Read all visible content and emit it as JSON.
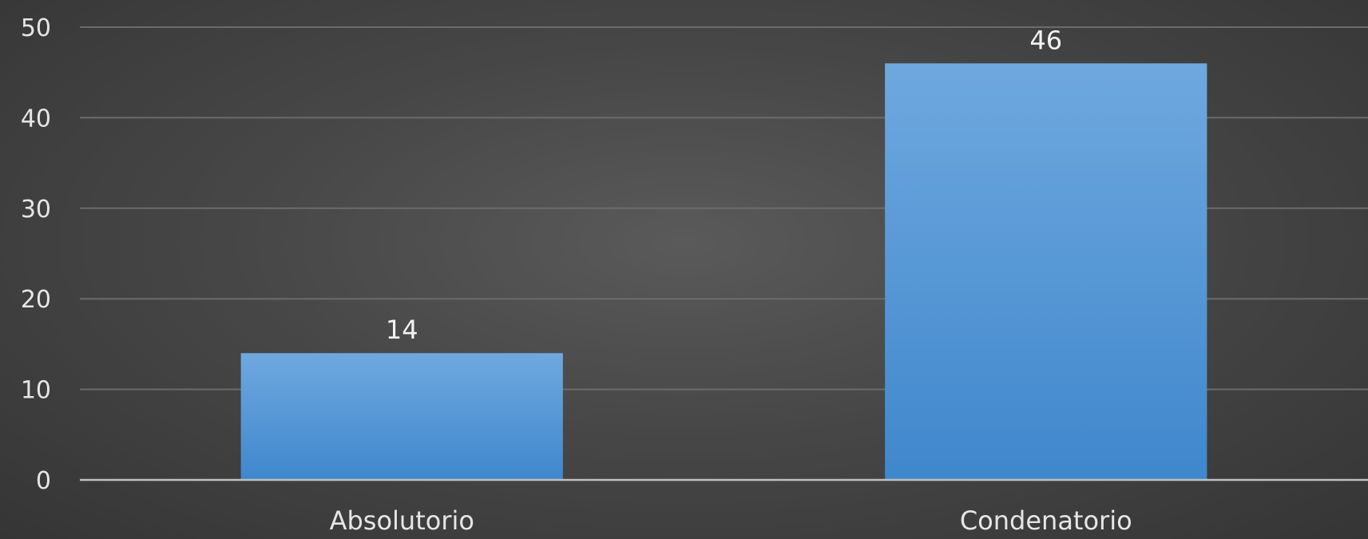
{
  "chart_data": {
    "type": "bar",
    "title": "",
    "xlabel": "",
    "ylabel": "",
    "categories": [
      "Absolutorio",
      "Condenatorio"
    ],
    "values": [
      14,
      46
    ],
    "data_labels": [
      "14",
      "46"
    ],
    "ylim": [
      0,
      50
    ],
    "yticks": [
      0,
      10,
      20,
      30,
      40,
      50
    ],
    "ytick_labels": [
      "0",
      "10",
      "20",
      "30",
      "40",
      "50"
    ],
    "grid": true,
    "legend": "none",
    "colors": {
      "background": "#474747",
      "bar_top": "#6fa8df",
      "bar_bottom": "#3f87cc",
      "gridline": "#6b6b6b",
      "axis": "#bfbfbf",
      "text": "#e6e6e6"
    }
  }
}
